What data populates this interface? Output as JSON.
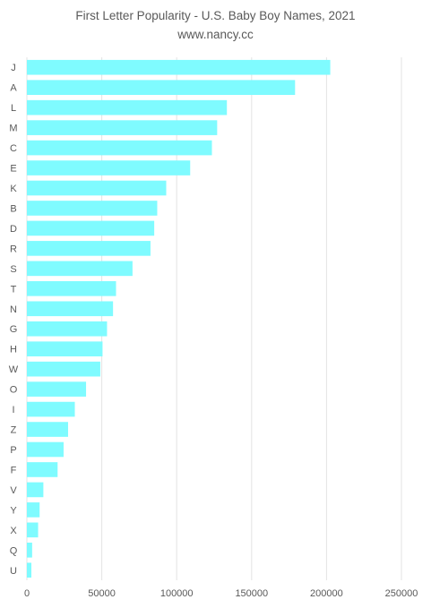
{
  "chart_data": {
    "type": "bar",
    "orientation": "horizontal",
    "title": "First Letter Popularity - U.S. Baby Boy Names, 2021",
    "subtitle": "www.nancy.cc",
    "categories": [
      "J",
      "A",
      "L",
      "M",
      "C",
      "E",
      "K",
      "B",
      "D",
      "R",
      "S",
      "T",
      "N",
      "G",
      "H",
      "W",
      "O",
      "I",
      "Z",
      "P",
      "F",
      "V",
      "Y",
      "X",
      "Q",
      "U"
    ],
    "values": [
      202500,
      179000,
      133500,
      127000,
      123500,
      109000,
      93000,
      87000,
      85000,
      82500,
      70500,
      59500,
      57500,
      53500,
      50500,
      49000,
      39500,
      32000,
      27500,
      24500,
      20500,
      11000,
      8500,
      7500,
      3500,
      3000
    ],
    "xlim": [
      0,
      250000
    ],
    "xticks": [
      0,
      50000,
      100000,
      150000,
      200000,
      250000
    ],
    "xlabel": "",
    "ylabel": "",
    "grid": "vertical",
    "bar_color": "#7ffbff",
    "legend": "none"
  }
}
